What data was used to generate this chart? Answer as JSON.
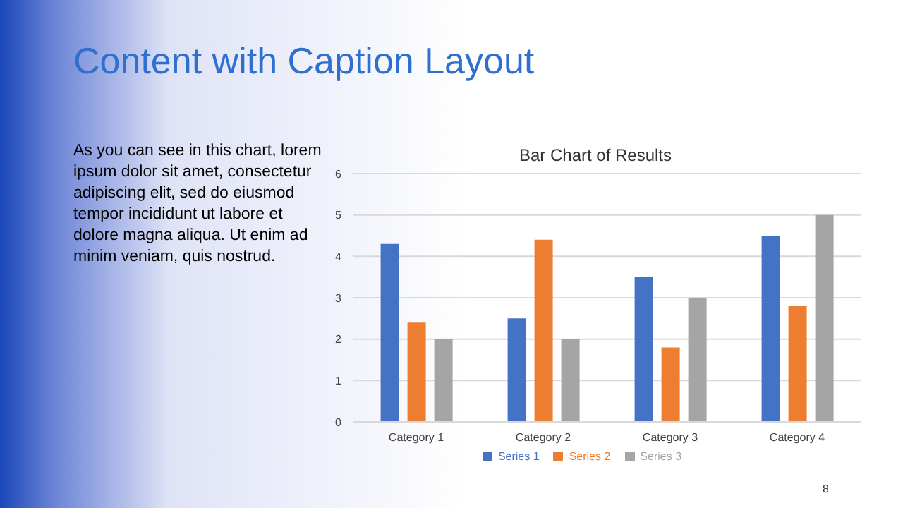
{
  "chart_data": {
    "type": "bar",
    "title": "Content with Caption Layout",
    "subtitle": "Bar Chart of Results",
    "annotations": [
      "As you can see in this chart, lorem ipsum dolor sit amet, consectetur adipiscing elit, sed do eiusmod tempor incididunt ut labore et dolore magna aliqua. Ut enim ad minim veniam, quis nostrud.",
      "8"
    ],
    "categories": [
      "Category 1",
      "Category 2",
      "Category 3",
      "Category 4"
    ],
    "series": [
      {
        "name": "Series 1",
        "color": "#4472c4",
        "values": [
          4.3,
          2.5,
          3.5,
          4.5
        ]
      },
      {
        "name": "Series 2",
        "color": "#ed7d31",
        "values": [
          2.4,
          4.4,
          1.8,
          2.8
        ]
      },
      {
        "name": "Series 3",
        "color": "#a5a5a5",
        "values": [
          2,
          2,
          3,
          5
        ]
      }
    ],
    "ylim": [
      0,
      6
    ],
    "yticks": [
      0,
      1,
      2,
      3,
      4,
      5,
      6
    ],
    "grid": "y",
    "legend": "bottom"
  }
}
